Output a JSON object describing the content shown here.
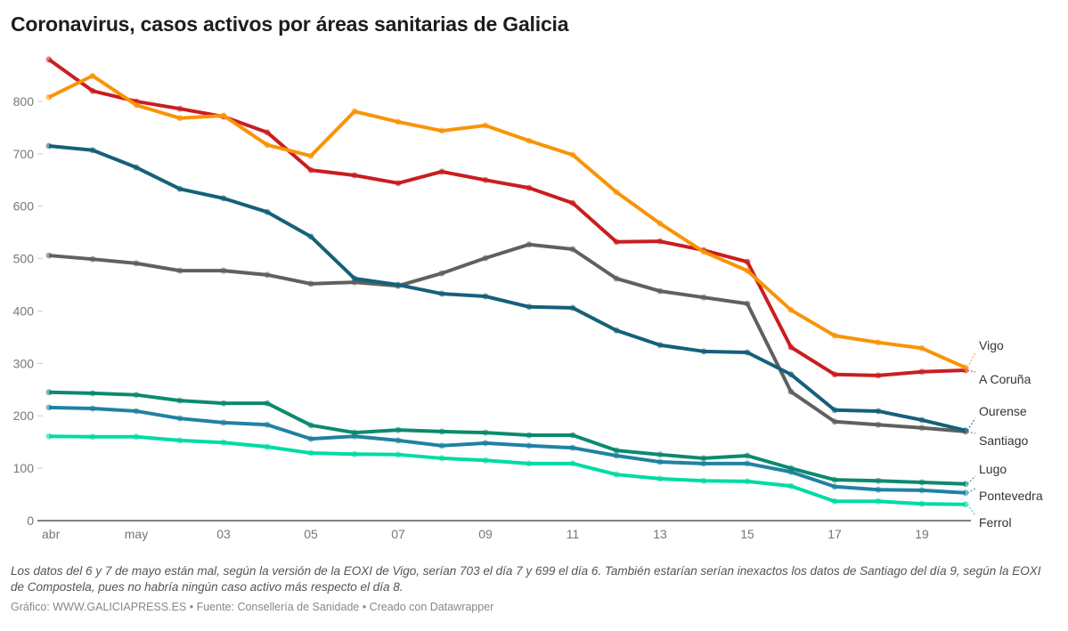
{
  "title": "Coronavirus, casos activos por áreas sanitarias de Galicia",
  "note": "Los datos del 6 y 7 de mayo están mal, según la versión de la EOXI de Vigo, serían 703 el día 7 y 699 el día 6. También estarían serían inexactos los datos de Santiago del día 9, según la EOXI de Compostela, pues no habría ningún caso activo más respecto el día 8.",
  "credit": "Gráfico: WWW.GALICIAPRESS.ES • Fuente: Consellería de Sanidade • Creado con Datawrapper",
  "chart_data": {
    "type": "line",
    "title": "Coronavirus, casos activos por áreas sanitarias de Galicia",
    "x": [
      "04-29",
      "04-30",
      "05-01",
      "05-02",
      "05-03",
      "05-04",
      "05-05",
      "05-06",
      "05-07",
      "05-08",
      "05-09",
      "05-10",
      "05-11",
      "05-12",
      "05-13",
      "05-14",
      "05-15",
      "05-16",
      "05-17",
      "05-18",
      "05-19",
      "05-20"
    ],
    "x_ticks": [
      {
        "x": "04-29",
        "label": "abr"
      },
      {
        "x": "05-01",
        "label": "may"
      },
      {
        "x": "05-03",
        "label": "03"
      },
      {
        "x": "05-05",
        "label": "05"
      },
      {
        "x": "05-07",
        "label": "07"
      },
      {
        "x": "05-09",
        "label": "09"
      },
      {
        "x": "05-11",
        "label": "11"
      },
      {
        "x": "05-13",
        "label": "13"
      },
      {
        "x": "05-15",
        "label": "15"
      },
      {
        "x": "05-17",
        "label": "17"
      },
      {
        "x": "05-19",
        "label": "19"
      }
    ],
    "y_ticks": [
      0,
      100,
      200,
      300,
      400,
      500,
      600,
      700,
      800
    ],
    "ylim": [
      0,
      900
    ],
    "grid": false,
    "legend": "direct-labels-right",
    "series": [
      {
        "name": "Vigo",
        "color": "#f89406",
        "values": [
          808,
          849,
          793,
          768,
          773,
          717,
          696,
          781,
          761,
          744,
          754,
          725,
          698,
          627,
          567,
          513,
          477,
          402,
          353,
          340,
          329,
          292
        ]
      },
      {
        "name": "A Coruña",
        "color": "#c91e1f",
        "values": [
          880,
          820,
          800,
          786,
          771,
          741,
          669,
          659,
          644,
          666,
          650,
          635,
          606,
          532,
          533,
          516,
          494,
          331,
          279,
          277,
          284,
          287
        ]
      },
      {
        "name": "Ourense",
        "color": "#15607a",
        "values": [
          715,
          707,
          674,
          633,
          615,
          589,
          542,
          462,
          450,
          433,
          428,
          408,
          406,
          363,
          335,
          323,
          321,
          279,
          211,
          209,
          192,
          172
        ]
      },
      {
        "name": "Santiago",
        "color": "#606060",
        "values": [
          506,
          499,
          491,
          477,
          477,
          469,
          452,
          455,
          448,
          472,
          501,
          527,
          518,
          462,
          438,
          426,
          414,
          246,
          189,
          183,
          177,
          170
        ]
      },
      {
        "name": "Lugo",
        "color": "#0b8a6e",
        "values": [
          245,
          243,
          240,
          229,
          224,
          224,
          182,
          168,
          173,
          170,
          168,
          163,
          163,
          134,
          126,
          119,
          124,
          100,
          78,
          76,
          73,
          70
        ]
      },
      {
        "name": "Pontevedra",
        "color": "#1f82a3",
        "values": [
          216,
          214,
          209,
          195,
          187,
          183,
          156,
          161,
          153,
          143,
          148,
          143,
          139,
          124,
          112,
          109,
          109,
          93,
          65,
          59,
          58,
          53
        ]
      },
      {
        "name": "Ferrol",
        "color": "#00dba4",
        "values": [
          161,
          160,
          160,
          153,
          149,
          141,
          129,
          127,
          126,
          119,
          115,
          109,
          109,
          88,
          80,
          76,
          75,
          66,
          37,
          37,
          32,
          31
        ]
      }
    ]
  }
}
